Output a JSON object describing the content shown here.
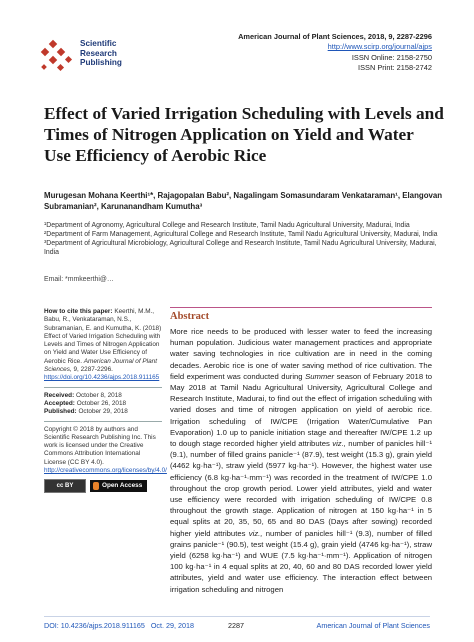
{
  "header": {
    "publisher_lines": [
      "Scientific",
      "Research",
      "Publishing"
    ],
    "journal_title": "American Journal of Plant Sciences, 2018, 9, 2287-2296",
    "journal_url": "http://www.scirp.org/journal/ajps",
    "issn_online": "ISSN Online: 2158-2750",
    "issn_print": "ISSN Print: 2158-2742",
    "logo_color": "#c0392b"
  },
  "title": "Effect of Varied Irrigation Scheduling with Levels and Times of Nitrogen Application on Yield and Water Use Efficiency of Aerobic Rice",
  "authors": "Murugesan Mohana Keerthi¹*, Rajagopalan Babu², Nagalingam Somasundaram Venkataraman¹, Elangovan Subramanian², Karunanandham Kumutha³",
  "affiliations": [
    "¹Department of Agronomy, Agricultural College and Research Institute, Tamil Nadu Agricultural University, Madurai, India",
    "²Department of Farm Management, Agricultural College and Research Institute, Tamil Nadu Agricultural University, Madurai, India",
    "³Department of Agricultural Microbiology, Agricultural College and Research Institute, Tamil Nadu Agricultural University, Madurai, India"
  ],
  "email": "Email: *mmkeerthi@…",
  "left": {
    "cite_label": "How to cite this paper:",
    "cite_text": "Keerthi, M.M., Babu, R., Venkataraman, N.S., Subramanian, E. and Kumutha, K. (2018) Effect of Varied Irrigation Scheduling with Levels and Times of Nitrogen Application on Yield and Water Use Efficiency of Aerobic Rice.",
    "cite_journal": "American Journal of Plant Sciences,",
    "cite_volume": "9, 2287-2296.",
    "cite_doi": "https://doi.org/10.4236/ajps.2018.911165",
    "received_label": "Received:",
    "received": "October 8, 2018",
    "accepted_label": "Accepted:",
    "accepted": "October 26, 2018",
    "published_label": "Published:",
    "published": "October 29, 2018",
    "copyright": "Copyright © 2018 by authors and Scientific Research Publishing Inc. This work is licensed under the Creative Commons Attribution International License (CC BY 4.0).",
    "license_url": "http://creativecommons.org/licenses/by/4.0/",
    "cc_badge": "cc  BY",
    "open_access": "Open Access"
  },
  "abstract": {
    "heading": "Abstract",
    "text_1": "More rice needs to be produced with lesser water to feed the increasing human population. Judicious water management practices and appropriate water saving technologies in rice cultivation are in need in the coming decades. Aerobic rice is one of water saving method of rice cultivation. The field experiment was conducted during ",
    "season": "Summer",
    "text_2": " season of February 2018 to May 2018 at Tamil Nadu Agricultural University, Agricultural College and Research Institute, Madurai, to find out the effect of irrigation scheduling with varied doses and time of nitrogen application on yield of aerobic rice. Irrigation scheduling of IW/CPE (Irrigation Water/Cumulative Pan Evaporation) 1.0 up to panicle initiation stage and thereafter IW/CPE 1.2 up to dough stage recorded higher yield attributes ",
    "viz": "viz.,",
    "text_3": " number of panicles hill⁻¹ (9.1), number of filled grains panicle⁻¹ (87.9), test weight (15.3 g), grain yield (4462 kg·ha⁻¹), straw yield (5977 kg·ha⁻¹). However, the highest water use efficiency (6.8 kg·ha⁻¹·mm⁻¹) was recorded in the treatment of IW/CPE 1.0 throughout the crop growth period. Lower yield attributes, yield and water use efficiency were recorded with irrigation scheduling of IW/CPE 0.8 throughout the growth stage. Application of nitrogen at 150 kg·ha⁻¹ in 5 equal splits at 20, 35, 50, 65 and 80 DAS (Days after sowing) recorded higher yield attributes ",
    "viz2": "viz.,",
    "text_4": " number of panicles hill⁻¹ (9.3), number of filled grains panicle⁻¹ (90.5), test weight (15.4 g), grain yield (4746 kg·ha⁻¹), straw yield (6258 kg·ha⁻¹) and WUE (7.5 kg·ha⁻¹·mm⁻¹). Application of nitrogen 100 kg·ha⁻¹ in 4 equal splits at 20, 40, 60 and 80 DAS recorded lower yield attributes, yield and water use efficiency. The interaction effect between irrigation scheduling and nitrogen"
  },
  "footer": {
    "doi": "DOI: 10.4236/ajps.2018.911165",
    "date": "Oct. 29, 2018",
    "page": "2287",
    "journal": "American Journal of Plant Sciences"
  }
}
